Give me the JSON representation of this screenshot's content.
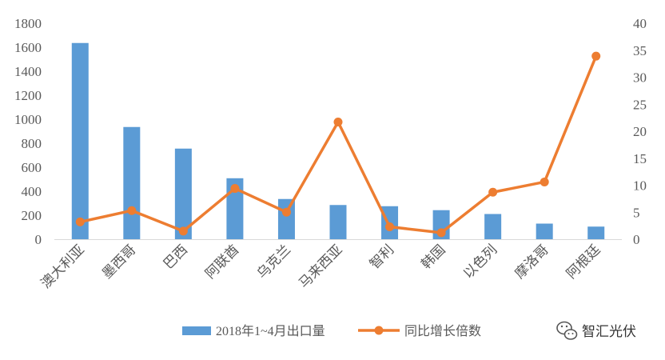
{
  "chart_data": {
    "type": "bar+line",
    "categories": [
      "澳大利亚",
      "墨西哥",
      "巴西",
      "阿联酋",
      "乌克兰",
      "马来西亚",
      "智利",
      "韩国",
      "以色列",
      "摩洛哥",
      "阿根廷"
    ],
    "series": [
      {
        "name": "2018年1~4月出口量",
        "type": "bar",
        "axis": "left",
        "color": "#5B9BD5",
        "values": [
          1635,
          935,
          755,
          508,
          335,
          285,
          275,
          242,
          210,
          130,
          105
        ]
      },
      {
        "name": "同比增长倍数",
        "type": "line",
        "axis": "right",
        "color": "#ED7D31",
        "values": [
          3.2,
          5.3,
          1.5,
          9.4,
          5.0,
          21.7,
          2.3,
          1.2,
          8.7,
          10.6,
          33.9
        ]
      }
    ],
    "y_left": {
      "min": 0,
      "max": 1800,
      "step": 200,
      "ticks": [
        "0",
        "200",
        "400",
        "600",
        "800",
        "1000",
        "1200",
        "1400",
        "1600",
        "1800"
      ]
    },
    "y_right": {
      "min": 0,
      "max": 40,
      "step": 5,
      "ticks": [
        "0",
        "5",
        "10",
        "15",
        "20",
        "25",
        "30",
        "35",
        "40"
      ]
    },
    "grid": false,
    "legend": "bottom"
  },
  "watermark": {
    "text": "智汇光伏",
    "icon": "wechat-icon"
  }
}
